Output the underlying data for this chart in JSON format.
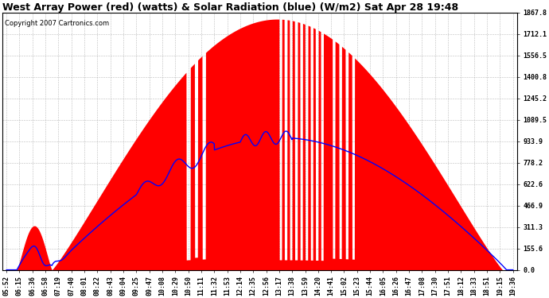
{
  "title": "West Array Power (red) (watts) & Solar Radiation (blue) (W/m2) Sat Apr 28 19:48",
  "copyright": "Copyright 2007 Cartronics.com",
  "background_color": "#ffffff",
  "plot_bg_color": "#ffffff",
  "grid_color": "#aaaaaa",
  "y_max": 1867.8,
  "y_min": 0.0,
  "y_ticks": [
    0.0,
    155.6,
    311.3,
    466.9,
    622.6,
    778.2,
    933.9,
    1089.5,
    1245.2,
    1400.8,
    1556.5,
    1712.1,
    1867.8
  ],
  "x_labels": [
    "05:52",
    "06:15",
    "06:36",
    "06:58",
    "07:19",
    "07:40",
    "08:01",
    "08:22",
    "08:43",
    "09:04",
    "09:25",
    "09:47",
    "10:08",
    "10:29",
    "10:50",
    "11:11",
    "11:32",
    "11:53",
    "12:14",
    "12:35",
    "12:56",
    "13:17",
    "13:38",
    "13:59",
    "14:20",
    "14:41",
    "15:02",
    "15:23",
    "15:44",
    "16:05",
    "16:26",
    "16:47",
    "17:08",
    "17:30",
    "17:51",
    "18:12",
    "18:33",
    "18:51",
    "19:15",
    "19:36"
  ],
  "red_fill_color": "#ff0000",
  "blue_line_color": "#0000ff",
  "title_fontsize": 9,
  "axis_fontsize": 6,
  "copyright_fontsize": 6
}
